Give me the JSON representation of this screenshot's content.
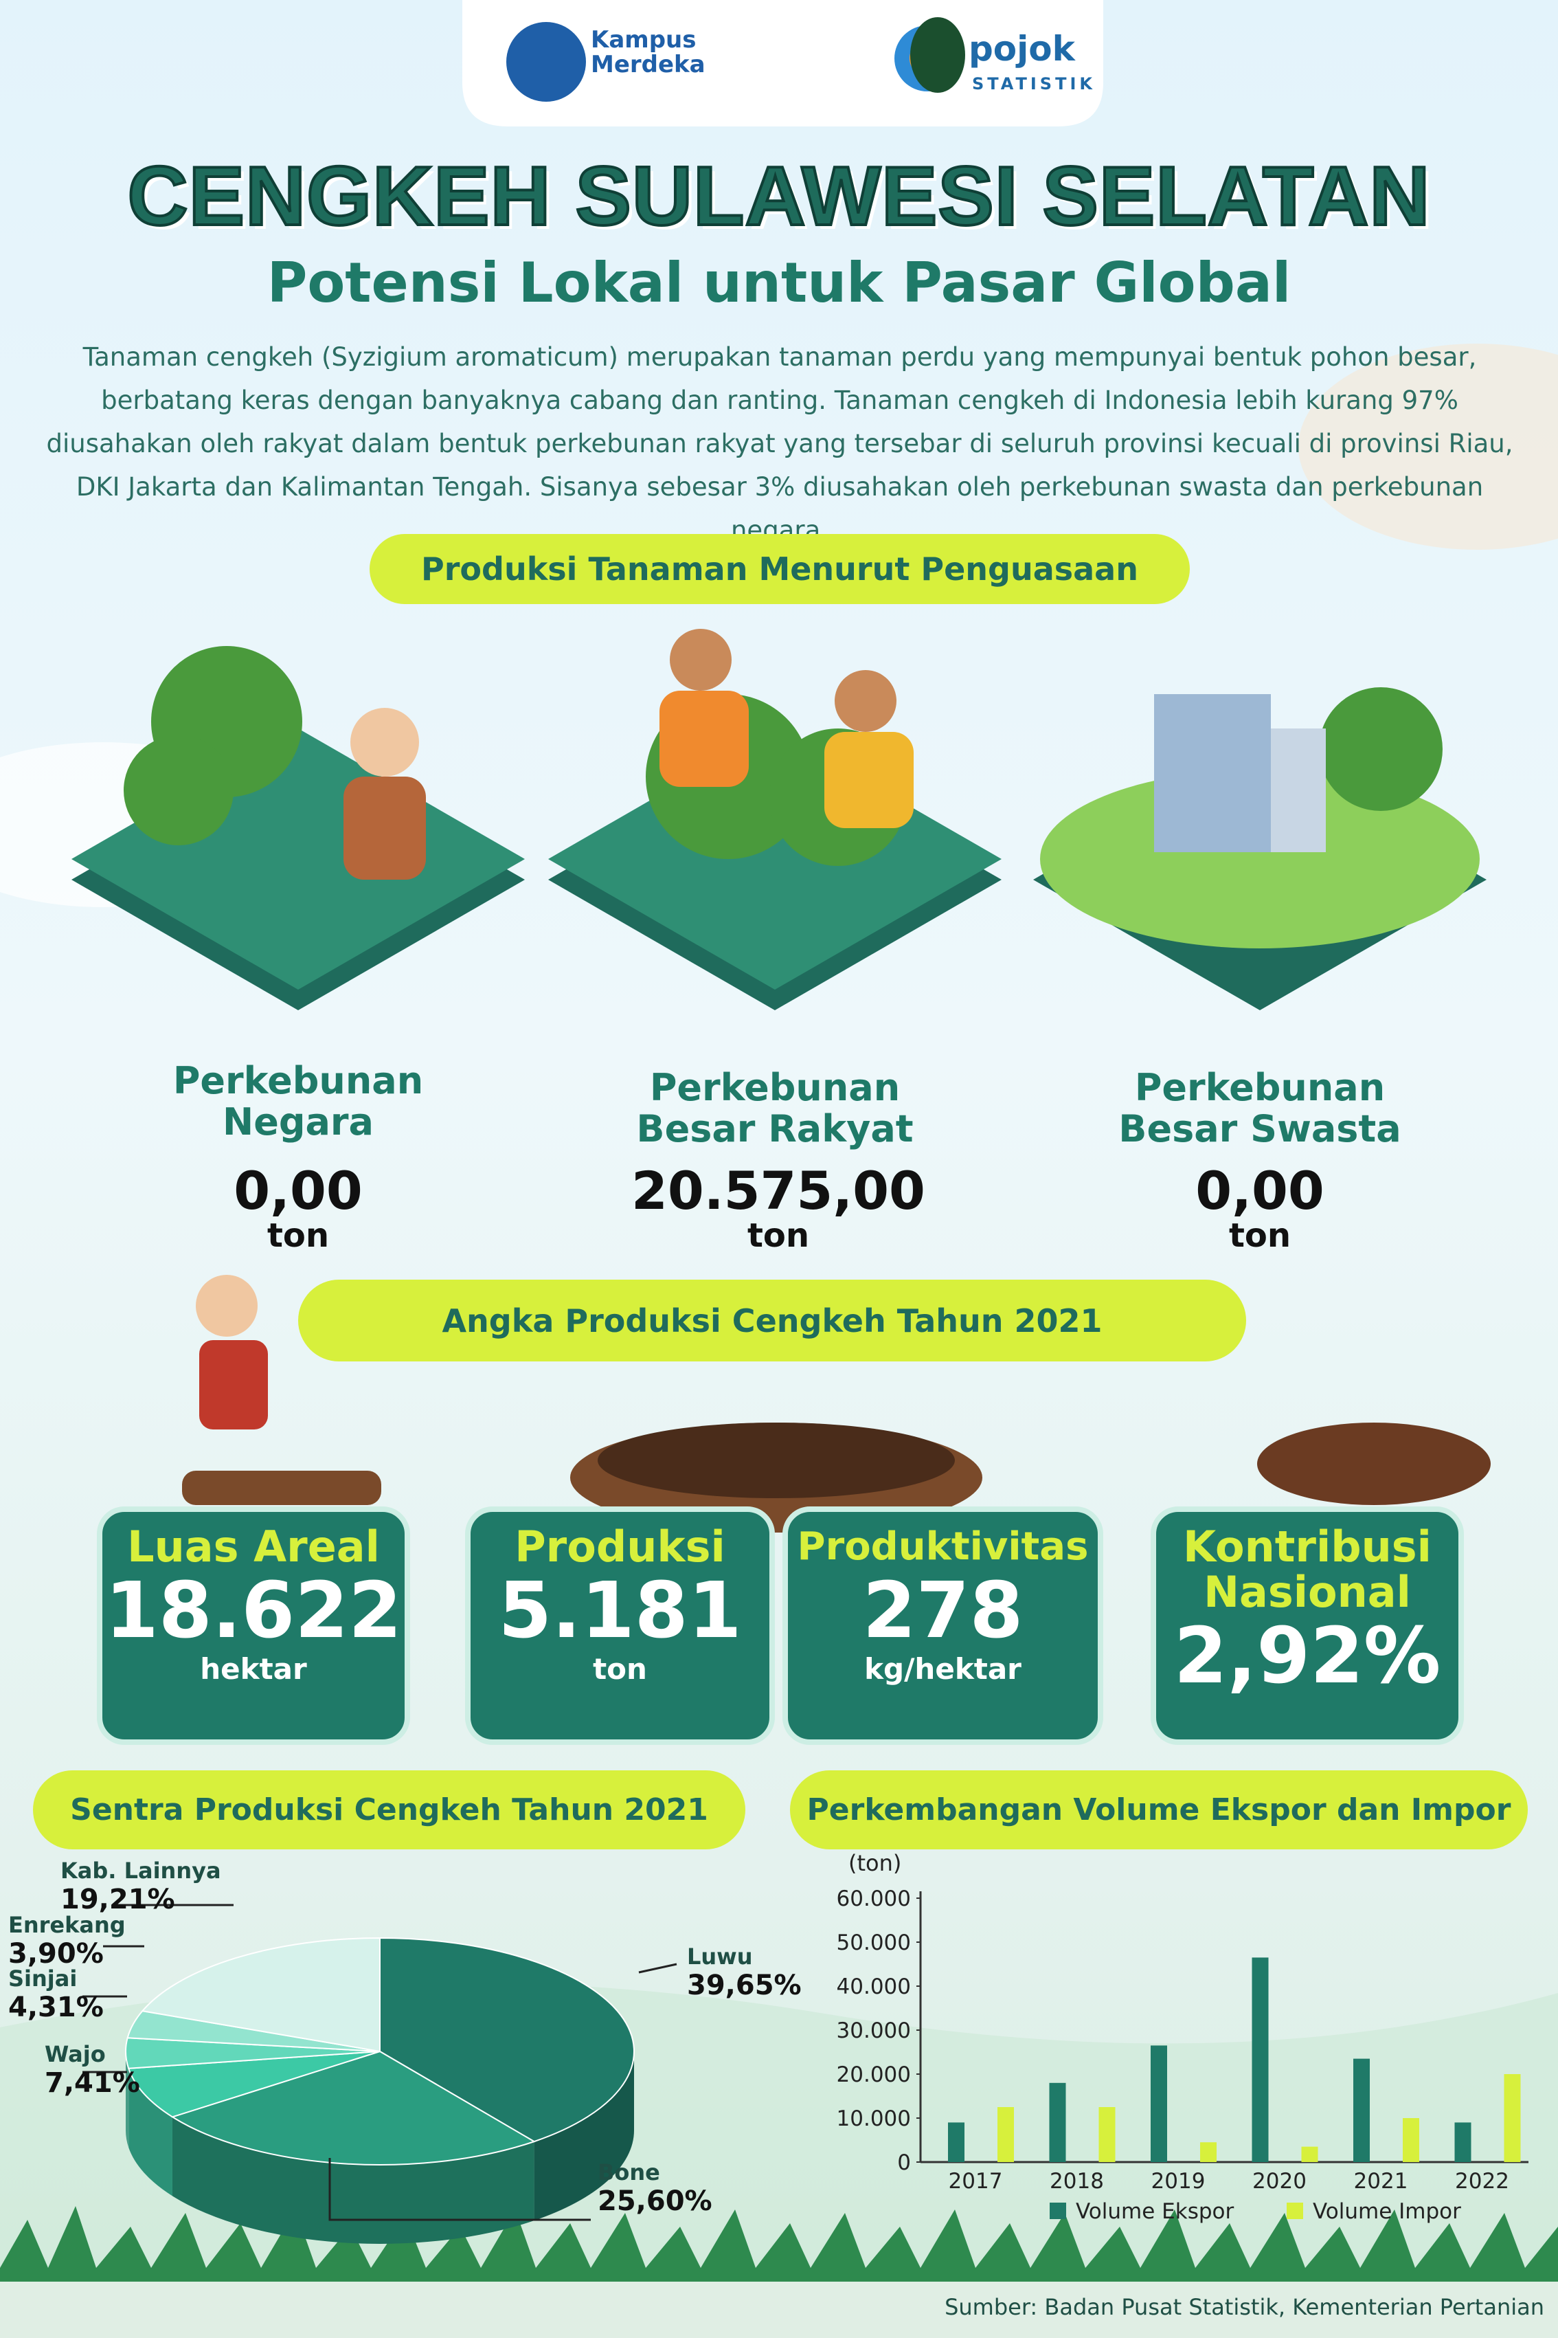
{
  "header": {
    "logos": [
      "Kampus Merdeka",
      "pojok",
      "STATISTIK"
    ]
  },
  "title": "CENGKEH SULAWESI SELATAN",
  "subtitle": "Potensi Lokal untuk Pasar Global",
  "intro": "Tanaman cengkeh (Syzigium aromaticum) merupakan tanaman perdu yang mempunyai bentuk pohon besar, berbatang keras dengan banyaknya cabang dan ranting. Tanaman cengkeh di Indonesia lebih kurang 97% diusahakan oleh rakyat dalam bentuk perkebunan rakyat yang tersebar di seluruh provinsi kecuali di provinsi Riau, DKI Jakarta dan Kalimantan Tengah. Sisanya sebesar 3% diusahakan oleh perkebunan swasta dan perkebunan negara.",
  "production": {
    "heading": "Produksi Tanaman Menurut Penguasaan",
    "items": [
      {
        "label": "Perkebunan Negara",
        "value": "0,00",
        "unit": "ton"
      },
      {
        "label": "Perkebunan Besar Rakyat",
        "value": "20.575,00",
        "unit": "ton"
      },
      {
        "label": "Perkebunan Besar Swasta",
        "value": "0,00",
        "unit": "ton"
      }
    ]
  },
  "statistics": {
    "heading": "Angka Produksi Cengkeh Tahun 2021",
    "items": [
      {
        "label": "Luas Areal",
        "value": "18.622",
        "unit": "hektar"
      },
      {
        "label": "Produksi",
        "value": "5.181",
        "unit": "ton"
      },
      {
        "label": "Produktivitas",
        "value": "278",
        "unit": "kg/hektar"
      },
      {
        "label": "Kontribusi Nasional",
        "value": "2,92%"
      }
    ]
  },
  "chart_data": [
    {
      "type": "pie",
      "title": "Sentra Produksi Cengkeh Tahun 2021",
      "categories": [
        "Luwu",
        "Bone",
        "Wajo",
        "Sinjai",
        "Enrekang",
        "Kab. Lainnya"
      ],
      "values": [
        39.65,
        25.6,
        7.41,
        4.31,
        3.9,
        19.21
      ],
      "value_labels": [
        "39,65%",
        "25,60%",
        "7,41%",
        "4,31%",
        "3,90%",
        "19,21%"
      ],
      "colors": [
        "#1f7a68",
        "#2a9d80",
        "#3cc9a5",
        "#62d8ba",
        "#93e4cf",
        "#d6f2eb"
      ]
    },
    {
      "type": "bar",
      "title": "Perkembangan Volume Ekspor dan Impor",
      "y_label": "(ton)",
      "categories": [
        "2017",
        "2018",
        "2019",
        "2020",
        "2021",
        "2022"
      ],
      "series": [
        {
          "name": "Volume Ekspor",
          "color": "#1f7a68",
          "values": [
            9000,
            18000,
            26500,
            46500,
            23500,
            9000
          ]
        },
        {
          "name": "Volume Impor",
          "color": "#d7f03c",
          "values": [
            12500,
            12500,
            4500,
            3500,
            10000,
            20000
          ]
        }
      ],
      "ylim": [
        0,
        60000
      ],
      "yticks": [
        0,
        {
          "value": 10000,
          "label": "10.000"
        },
        {
          "value": 20000,
          "label": "20.000"
        },
        {
          "value": 30000,
          "label": "30.000"
        },
        {
          "value": 40000,
          "label": "40.000"
        },
        {
          "value": 50000,
          "label": "50.000"
        },
        {
          "value": 60000,
          "label": "60.000"
        }
      ]
    }
  ],
  "source": "Sumber: Badan Pusat Statistik, Kementerian Pertanian"
}
